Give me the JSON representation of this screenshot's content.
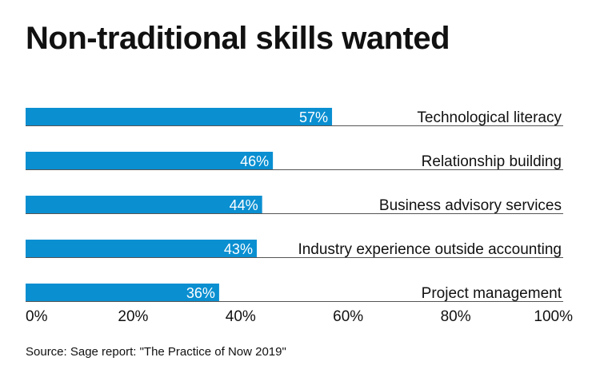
{
  "chart_data": {
    "type": "bar",
    "orientation": "horizontal",
    "title": "Non-traditional skills wanted",
    "categories": [
      "Technological literacy",
      "Relationship building",
      "Business advisory services",
      "Industry experience outside accounting",
      "Project management"
    ],
    "values": [
      57,
      46,
      44,
      43,
      36
    ],
    "value_labels": [
      "57%",
      "46%",
      "44%",
      "43%",
      "36%"
    ],
    "x_ticks": [
      0,
      20,
      40,
      60,
      80,
      100
    ],
    "x_tick_labels": [
      "0%",
      "20%",
      "40%",
      "60%",
      "80%",
      "100%"
    ],
    "xlim": [
      0,
      100
    ],
    "bar_color": "#0a8fd1",
    "grid": false,
    "legend": "none"
  },
  "source": "Source: Sage report: \"The Practice of Now 2019\""
}
